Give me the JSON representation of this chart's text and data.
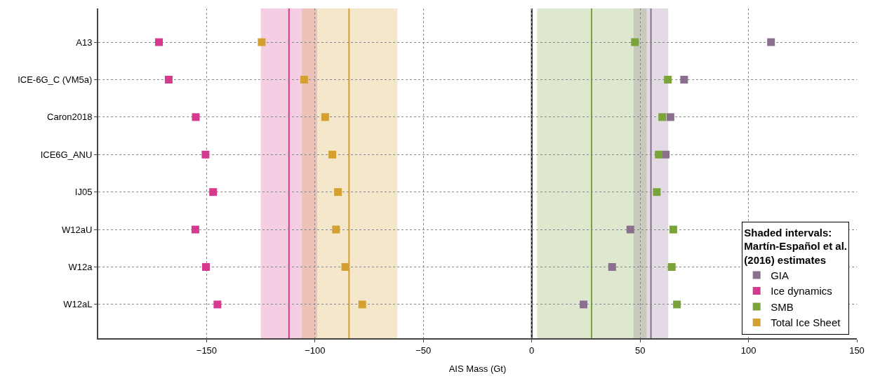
{
  "chart_data": {
    "type": "scatter",
    "orientation": "horizontal",
    "xlabel": "AIS Mass (Gt)",
    "legend_title": "Shaded intervals:\nMartín-Español et al.\n(2016) estimates",
    "categories": [
      "A13",
      "ICE-6G_C (VM5a)",
      "Caron2018",
      "ICE6G_ANU",
      "IJ05",
      "W12aU",
      "W12a",
      "W12aL"
    ],
    "series": [
      {
        "name": "GIA",
        "color": "#8a6f8e",
        "values": [
          110.4,
          70.3,
          64,
          61.8,
          null,
          45.5,
          37.1,
          23.9
        ]
      },
      {
        "name": "Ice dynamics",
        "color": "#d63a8e",
        "values": [
          -172,
          -167.5,
          -155,
          -150.5,
          -147,
          -155.2,
          -150.3,
          -145
        ]
      },
      {
        "name": "SMB",
        "color": "#7aa33a",
        "values": [
          47.6,
          62.8,
          60.2,
          58.6,
          57.7,
          65.3,
          64.6,
          67
        ]
      },
      {
        "name": "Total Ice Sheet",
        "color": "#d4a030",
        "values": [
          -124.6,
          -105,
          -95.3,
          -92,
          -89.4,
          -90.3,
          -86,
          -78.2
        ]
      }
    ],
    "xlim": [
      -200,
      150
    ],
    "xticks": [
      -150,
      -100,
      -50,
      0,
      50,
      100,
      150
    ],
    "bands": [
      {
        "axis": "x",
        "from": -125,
        "to": -99,
        "color": "#d63a8e"
      },
      {
        "axis": "x",
        "from": -106,
        "to": -62,
        "color": "#d4a030"
      },
      {
        "axis": "x",
        "from": 2.5,
        "to": 53,
        "color": "#7aa33a"
      },
      {
        "axis": "x",
        "from": 47,
        "to": 63,
        "color": "#8a6f8e"
      }
    ],
    "ref_lines": [
      {
        "axis": "x",
        "value": 0,
        "color": "#000000"
      },
      {
        "axis": "x",
        "value": -112,
        "color": "#d63a8e"
      },
      {
        "axis": "x",
        "value": -84.3,
        "color": "#d4a030"
      },
      {
        "axis": "x",
        "value": 27.6,
        "color": "#7aa33a"
      },
      {
        "axis": "x",
        "value": 55,
        "color": "#8a6f8e"
      }
    ],
    "grid": true,
    "legend": "bottom right",
    "marker": "square"
  }
}
